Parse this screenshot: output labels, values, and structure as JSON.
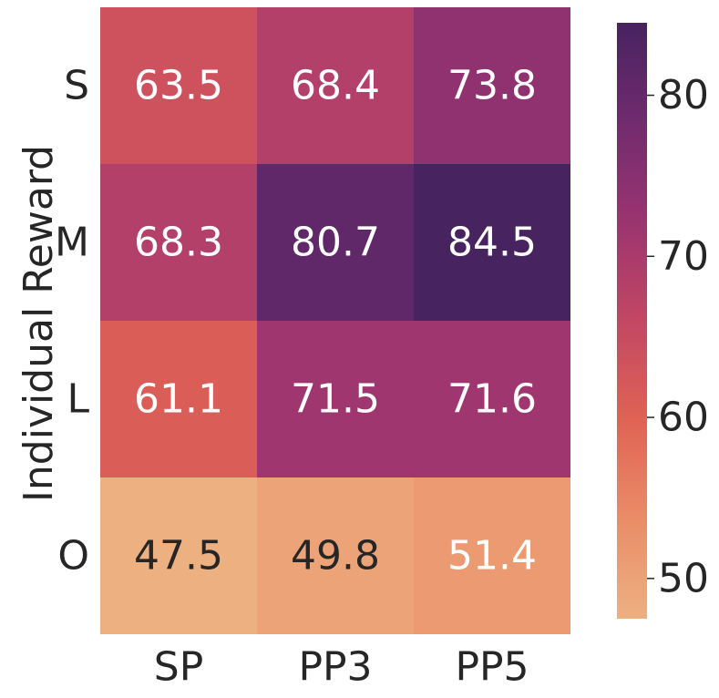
{
  "chart_data": {
    "type": "heatmap",
    "title": "",
    "xlabel": "",
    "ylabel": "Individual Reward",
    "x_categories": [
      "SP",
      "PP3",
      "PP5"
    ],
    "y_categories": [
      "S",
      "M",
      "L",
      "O"
    ],
    "values": [
      [
        63.5,
        68.4,
        73.8
      ],
      [
        68.3,
        80.7,
        84.5
      ],
      [
        61.1,
        71.5,
        71.6
      ],
      [
        47.5,
        49.8,
        51.4
      ]
    ],
    "value_labels": [
      [
        "63.5",
        "68.4",
        "73.8"
      ],
      [
        "68.3",
        "80.7",
        "84.5"
      ],
      [
        "61.1",
        "71.5",
        "71.6"
      ],
      [
        "47.5",
        "49.8",
        "51.4"
      ]
    ],
    "colorbar": {
      "vmin": 47.5,
      "vmax": 84.5,
      "ticks": [
        50,
        60,
        70,
        80
      ],
      "tick_labels": [
        "50",
        "60",
        "70",
        "80"
      ],
      "colormap": "flare",
      "stops": [
        "#edb081",
        "#ea8d67",
        "#e06354",
        "#c24763",
        "#9b3470",
        "#712b6f",
        "#47235f"
      ]
    },
    "text_colors": {
      "light": "#ffffff",
      "dark": "#262626"
    }
  }
}
